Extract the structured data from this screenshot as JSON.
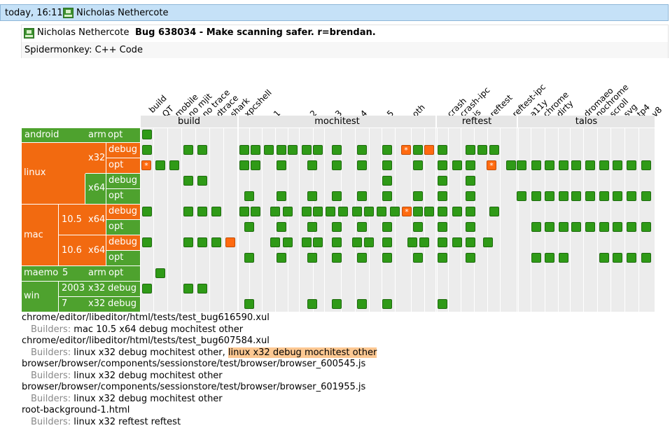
{
  "push": {
    "time": "today, 16:11",
    "author": "Nicholas Nethercote"
  },
  "commit": {
    "author": "Nicholas Nethercote",
    "message": "Bug 638034 - Make scanning safer. r=brendan.",
    "project": "Spidermonkey: C++ Code"
  },
  "columns": [
    "build",
    "QT",
    "mobile",
    "no mjit",
    "no trace",
    "dtrace",
    "shark",
    "xpcshell",
    "1",
    "2",
    "3",
    "4",
    "5",
    "oth",
    "crash",
    "crash-ipc",
    "js",
    "reftest",
    "reftest-ipc",
    "a11y",
    "chrome",
    "dirty",
    "dromaeo",
    "nochrome",
    "scroll",
    "svg",
    "tp4",
    "v8"
  ],
  "groups": [
    "build",
    "mochitest",
    "reftest",
    "talos"
  ],
  "rows": {
    "android": "android",
    "android_arch": "arm",
    "android_opt": "opt",
    "linux": "linux",
    "x32": "x32",
    "x64": "x64",
    "debug": "debug",
    "opt": "opt",
    "mac": "mac",
    "mac105": "10.5",
    "mac106": "10.6",
    "maemo": "maemo",
    "maemo_ver": "5",
    "arm": "arm",
    "win": "win",
    "win2003": "2003",
    "win7": "7"
  },
  "status_marker": "*",
  "failures": [
    {
      "file": "chrome/editor/libeditor/html/tests/test_bug616590.xul",
      "builders_label": "Builders:",
      "builders": "mac 10.5 x64 debug mochitest other",
      "builders_extra": ""
    },
    {
      "file": "chrome/editor/libeditor/html/tests/test_bug607584.xul",
      "builders_label": "Builders:",
      "builders": "linux x32 debug mochitest other,",
      "builders_extra": "linux x32 debug mochitest other"
    },
    {
      "file": "browser/browser/components/sessionstore/test/browser/browser_600545.js",
      "builders_label": "Builders:",
      "builders": "linux x32 debug mochitest other",
      "builders_extra": ""
    },
    {
      "file": "browser/browser/components/sessionstore/test/browser/browser_601955.js",
      "builders_label": "Builders:",
      "builders": "linux x32 debug mochitest other",
      "builders_extra": ""
    },
    {
      "file": "root-background-1.html",
      "builders_label": "Builders:",
      "builders": "linux x32 reftest reftest",
      "builders_extra": ""
    }
  ],
  "colors": {
    "success": "#2f9a17",
    "failure": "#ff6a10",
    "row_green": "#4ea22e",
    "row_orange": "#f26a10",
    "highlight": "#fdc892",
    "topbar": "#c5e1f7"
  }
}
